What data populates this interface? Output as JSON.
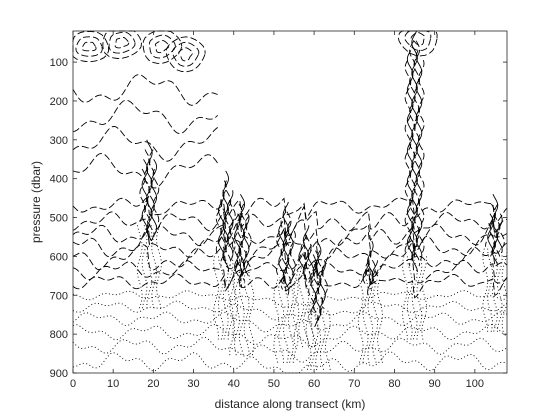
{
  "chart_data": {
    "type": "contour",
    "title": "",
    "xlabel": "distance along transect (km)",
    "ylabel": "pressure (dbar)",
    "xlim": [
      0,
      108
    ],
    "ylim": [
      900,
      20
    ],
    "y_reversed": true,
    "grid": false,
    "legend": "none",
    "x_ticks": [
      0,
      10,
      20,
      30,
      40,
      50,
      60,
      70,
      80,
      90,
      100
    ],
    "y_ticks": [
      100,
      200,
      300,
      400,
      500,
      600,
      700,
      800,
      900
    ],
    "line_color": "#000000",
    "line_styles": {
      "upper_layer": "dashed",
      "deep_layer": "dotted",
      "fronts": "solid"
    },
    "surface_features": [
      {
        "x": 4,
        "p": 60
      },
      {
        "x": 12,
        "p": 50
      },
      {
        "x": 22,
        "p": 60
      },
      {
        "x": 28,
        "p": 80
      },
      {
        "x": 86,
        "p": 40
      }
    ],
    "fronts": [
      {
        "x": 19,
        "p_top": 300,
        "p_bottom": 560
      },
      {
        "x": 38,
        "p_top": 380,
        "p_bottom": 640
      },
      {
        "x": 42,
        "p_top": 440,
        "p_bottom": 680
      },
      {
        "x": 53,
        "p_top": 460,
        "p_bottom": 700
      },
      {
        "x": 58,
        "p_top": 520,
        "p_bottom": 660
      },
      {
        "x": 61,
        "p_top": 560,
        "p_bottom": 780
      },
      {
        "x": 74,
        "p_top": 560,
        "p_bottom": 700
      },
      {
        "x": 85,
        "p_top": 20,
        "p_bottom": 640
      },
      {
        "x": 105,
        "p_top": 440,
        "p_bottom": 620
      }
    ],
    "upper_bands": [
      {
        "base": 470,
        "amp": 20
      },
      {
        "base": 510,
        "amp": 25
      },
      {
        "base": 545,
        "amp": 28
      },
      {
        "base": 575,
        "amp": 30
      },
      {
        "base": 605,
        "amp": 30
      },
      {
        "base": 635,
        "amp": 25
      },
      {
        "base": 665,
        "amp": 20
      }
    ],
    "deep_bands": [
      {
        "base": 700,
        "amp": 12
      },
      {
        "base": 730,
        "amp": 15
      },
      {
        "base": 760,
        "amp": 18
      },
      {
        "base": 795,
        "amp": 20
      },
      {
        "base": 830,
        "amp": 22
      },
      {
        "base": 870,
        "amp": 25
      }
    ]
  }
}
